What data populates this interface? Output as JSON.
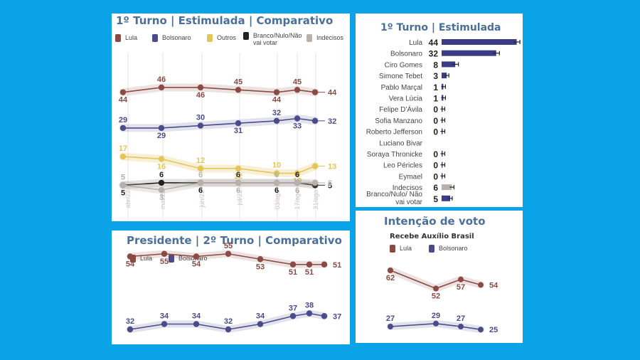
{
  "colors": {
    "lula": "#8b4a44",
    "bolsonaro": "#4b4a8a",
    "outros": "#e4c55a",
    "branco": "#222222",
    "indecisos": "#b7b0ad"
  },
  "chart_data": [
    {
      "type": "line",
      "title": "1º Turno | Estimulada | Comparativo",
      "x": [
        "abr/22",
        "mai/22",
        "jun/22",
        "jul/22",
        "03/ago",
        "17/ago",
        "31/ago"
      ],
      "series": [
        {
          "name": "Lula",
          "values": [
            44,
            46,
            46,
            45,
            44,
            45,
            44
          ],
          "label_pos": [
            "below",
            "above",
            "below",
            "above",
            "below",
            "above",
            "right"
          ]
        },
        {
          "name": "Bolsonaro",
          "values": [
            29,
            29,
            30,
            31,
            32,
            33,
            32
          ],
          "label_pos": [
            "above",
            "below",
            "above",
            "below",
            "above",
            "below",
            "right"
          ]
        },
        {
          "name": "Outros",
          "values": [
            17,
            16,
            12,
            12,
            10,
            10,
            13
          ],
          "label_pos": [
            "above",
            "below",
            "above",
            "below",
            "above",
            "below",
            "right"
          ]
        },
        {
          "name": "Branco/Nulo/Não vai votar",
          "values": [
            5,
            6,
            6,
            6,
            6,
            6,
            5
          ],
          "label_pos": [
            "below",
            "above",
            "below",
            "above",
            "below",
            "above",
            "right"
          ]
        },
        {
          "name": "Indecisos",
          "values": [
            5,
            3,
            6,
            6,
            6,
            6,
            6
          ],
          "label_pos": [
            "above",
            "below",
            "above",
            "below",
            "above",
            "below",
            "right"
          ]
        }
      ]
    },
    {
      "type": "bar",
      "title": "1º Turno | Estimulada",
      "categories": [
        "Lula",
        "Bolsonaro",
        "Ciro Gomes",
        "Simone Tebet",
        "Pablo Marçal",
        "Vera Lúcia",
        "Felipe D'Ávila",
        "Sofia Manzano",
        "Roberto Jefferson",
        "Luciano Bivar",
        "Soraya Thronicke",
        "Leo Péricles",
        "Eymael",
        "Indecisos",
        "Branco/Nulo/ Não vai votar"
      ],
      "values": [
        44,
        32,
        8,
        3,
        1,
        1,
        0,
        0,
        0,
        null,
        0,
        0,
        0,
        6,
        5
      ],
      "value_labels": [
        "44",
        "32",
        "8",
        "3",
        "1",
        "1",
        "0",
        "0",
        "0",
        "",
        "0",
        "0",
        "0",
        "6",
        "5"
      ]
    },
    {
      "type": "line",
      "title": "Presidente | 2º Turno | Comparativo",
      "series": [
        {
          "name": "Lula",
          "values": [
            54,
            55,
            54,
            55,
            53,
            51,
            51,
            51
          ]
        },
        {
          "name": "Bolsonaro",
          "values": [
            32,
            34,
            34,
            32,
            34,
            37,
            38,
            37
          ]
        }
      ]
    },
    {
      "type": "line",
      "title": "Intenção de voto",
      "subtitle": "Recebe Auxílio Brasil",
      "series": [
        {
          "name": "Lula",
          "values": [
            62,
            52,
            57,
            54
          ]
        },
        {
          "name": "Bolsonaro",
          "values": [
            27,
            29,
            27,
            25
          ]
        }
      ]
    }
  ],
  "legend_p1": [
    "Lula",
    "Bolsonaro",
    "Outros",
    "Branco/Nulo/Não vai votar",
    "Indecisos"
  ],
  "legend_p3": [
    "Lula",
    "Bolsonaro"
  ],
  "legend_p4": [
    "Lula",
    "Bolsonaro"
  ]
}
